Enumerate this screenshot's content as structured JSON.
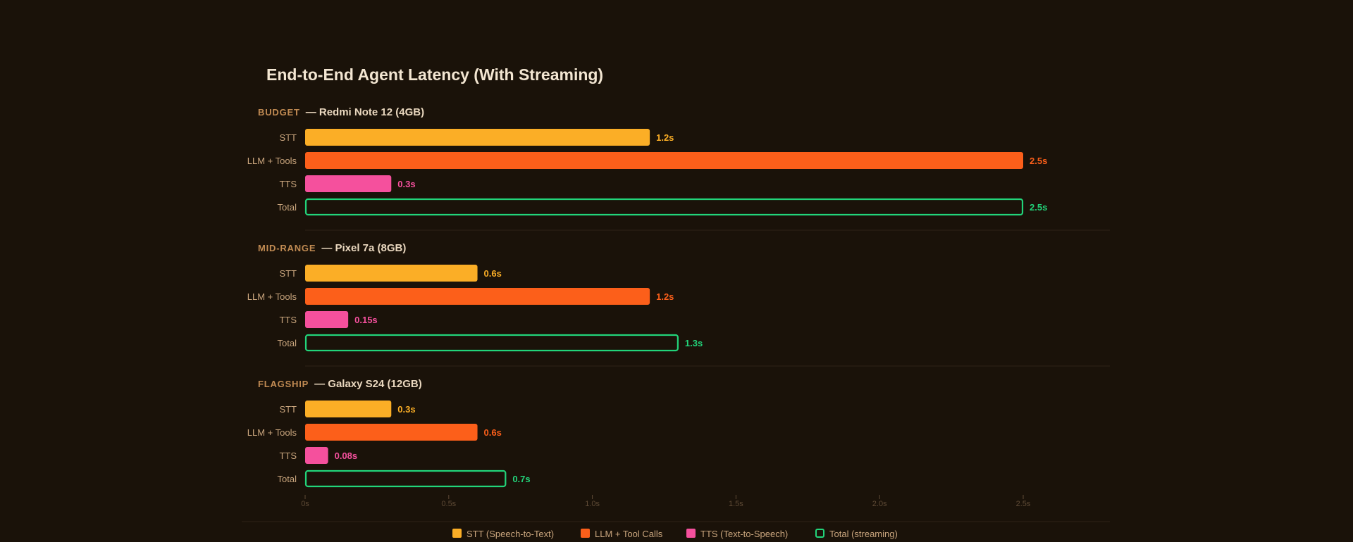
{
  "chart_data": {
    "type": "bar",
    "title": "End-to-End Agent Latency (With Streaming)",
    "xlim": [
      0,
      2.8
    ],
    "x_ticks": [
      {
        "value": 0,
        "label": "0s"
      },
      {
        "value": 0.5,
        "label": "0.5s"
      },
      {
        "value": 1.0,
        "label": "1.0s"
      },
      {
        "value": 1.5,
        "label": "1.5s"
      },
      {
        "value": 2.0,
        "label": "2.0s"
      },
      {
        "value": 2.5,
        "label": "2.5s"
      }
    ],
    "grid": false,
    "legend_position": "bottom",
    "groups": [
      {
        "tier": "BUDGET",
        "device": "— Redmi Note 12 (4GB)",
        "bars": [
          {
            "label": "STT",
            "key": "stt",
            "value": 1.2,
            "value_label": "1.2s"
          },
          {
            "label": "LLM + Tools",
            "key": "llm",
            "value": 2.5,
            "value_label": "2.5s"
          },
          {
            "label": "TTS",
            "key": "tts",
            "value": 0.3,
            "value_label": "0.3s"
          },
          {
            "label": "Total",
            "key": "total",
            "value": 2.5,
            "value_label": "2.5s"
          }
        ]
      },
      {
        "tier": "MID-RANGE",
        "device": "— Pixel 7a (8GB)",
        "bars": [
          {
            "label": "STT",
            "key": "stt",
            "value": 0.6,
            "value_label": "0.6s"
          },
          {
            "label": "LLM + Tools",
            "key": "llm",
            "value": 1.2,
            "value_label": "1.2s"
          },
          {
            "label": "TTS",
            "key": "tts",
            "value": 0.15,
            "value_label": "0.15s"
          },
          {
            "label": "Total",
            "key": "total",
            "value": 1.3,
            "value_label": "1.3s"
          }
        ]
      },
      {
        "tier": "FLAGSHIP",
        "device": "— Galaxy S24 (12GB)",
        "bars": [
          {
            "label": "STT",
            "key": "stt",
            "value": 0.3,
            "value_label": "0.3s"
          },
          {
            "label": "LLM + Tools",
            "key": "llm",
            "value": 0.6,
            "value_label": "0.6s"
          },
          {
            "label": "TTS",
            "key": "tts",
            "value": 0.08,
            "value_label": "0.08s"
          },
          {
            "label": "Total",
            "key": "total",
            "value": 0.7,
            "value_label": "0.7s"
          }
        ]
      }
    ],
    "legend": [
      {
        "key": "stt",
        "label": "STT (Speech-to-Text)"
      },
      {
        "key": "llm",
        "label": "LLM + Tool Calls"
      },
      {
        "key": "tts",
        "label": "TTS (Text-to-Speech)"
      },
      {
        "key": "total",
        "label": "Total (streaming)"
      }
    ],
    "colors": {
      "stt": "#fbae26",
      "llm": "#fc5f1a",
      "tts": "#f5509d",
      "total": "#22d47a",
      "background": "#1a1209",
      "title": "#f3e6d2",
      "tier": "#c08a52",
      "device": "#ead8bf",
      "row_label": "#c9a57d",
      "tick": "#5e4a35",
      "separator": "#2e2216"
    }
  }
}
